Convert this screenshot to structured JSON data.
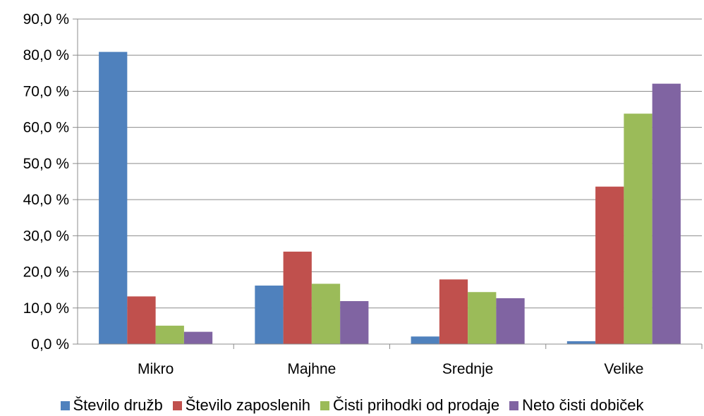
{
  "chart_data": {
    "type": "bar",
    "categories": [
      "Mikro",
      "Majhne",
      "Srednje",
      "Velike"
    ],
    "series": [
      {
        "name": "Število družb",
        "color": "#4F81BD",
        "values": [
          80.9,
          16.2,
          2.1,
          0.8
        ]
      },
      {
        "name": "Število zaposlenih",
        "color": "#C0504D",
        "values": [
          13.2,
          25.6,
          17.9,
          43.6
        ]
      },
      {
        "name": "Čisti prihodki od prodaje",
        "color": "#9BBB59",
        "values": [
          5.1,
          16.7,
          14.4,
          63.8
        ]
      },
      {
        "name": "Neto čisti dobiček",
        "color": "#8064A2",
        "values": [
          3.4,
          11.9,
          12.7,
          72.1
        ]
      }
    ],
    "yticks": [
      "0,0 %",
      "10,0 %",
      "20,0 %",
      "30,0 %",
      "40,0 %",
      "50,0 %",
      "60,0 %",
      "70,0 %",
      "80,0 %",
      "90,0 %"
    ],
    "ylim": [
      0,
      90
    ],
    "grid": true,
    "legend_position": "bottom",
    "title": "",
    "xlabel": "",
    "ylabel": ""
  }
}
